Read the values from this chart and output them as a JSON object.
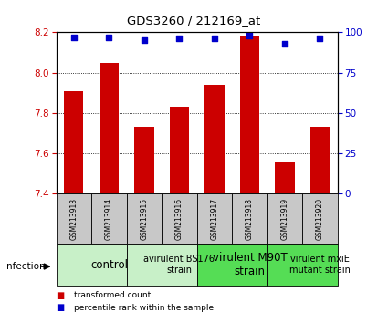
{
  "title": "GDS3260 / 212169_at",
  "samples": [
    "GSM213913",
    "GSM213914",
    "GSM213915",
    "GSM213916",
    "GSM213917",
    "GSM213918",
    "GSM213919",
    "GSM213920"
  ],
  "bar_values": [
    7.91,
    8.05,
    7.73,
    7.83,
    7.94,
    8.18,
    7.56,
    7.73
  ],
  "percentile_values": [
    97,
    97,
    95,
    96,
    96,
    98,
    93,
    96
  ],
  "bar_color": "#cc0000",
  "dot_color": "#0000cc",
  "ylim_left": [
    7.4,
    8.2
  ],
  "ylim_right": [
    0,
    100
  ],
  "yticks_left": [
    7.4,
    7.6,
    7.8,
    8.0,
    8.2
  ],
  "yticks_right": [
    0,
    25,
    50,
    75,
    100
  ],
  "groups": [
    {
      "label": "control",
      "start": 0,
      "end": 2,
      "color": "#c8f0c8",
      "fontsize": 8.5,
      "bold": false
    },
    {
      "label": "avirulent BS176\nstrain",
      "start": 2,
      "end": 4,
      "color": "#c8f0c8",
      "fontsize": 7,
      "bold": false
    },
    {
      "label": "virulent M90T\nstrain",
      "start": 4,
      "end": 6,
      "color": "#55dd55",
      "fontsize": 8.5,
      "bold": false
    },
    {
      "label": "virulent mxiE\nmutant strain",
      "start": 6,
      "end": 8,
      "color": "#55dd55",
      "fontsize": 7,
      "bold": false
    }
  ],
  "infection_label": "infection",
  "legend_items": [
    {
      "label": "transformed count",
      "color": "#cc0000"
    },
    {
      "label": "percentile rank within the sample",
      "color": "#0000cc"
    }
  ],
  "tick_color_left": "#cc0000",
  "tick_color_right": "#0000cc",
  "bar_width": 0.55,
  "background_sample": "#c8c8c8",
  "dot_size": 18
}
